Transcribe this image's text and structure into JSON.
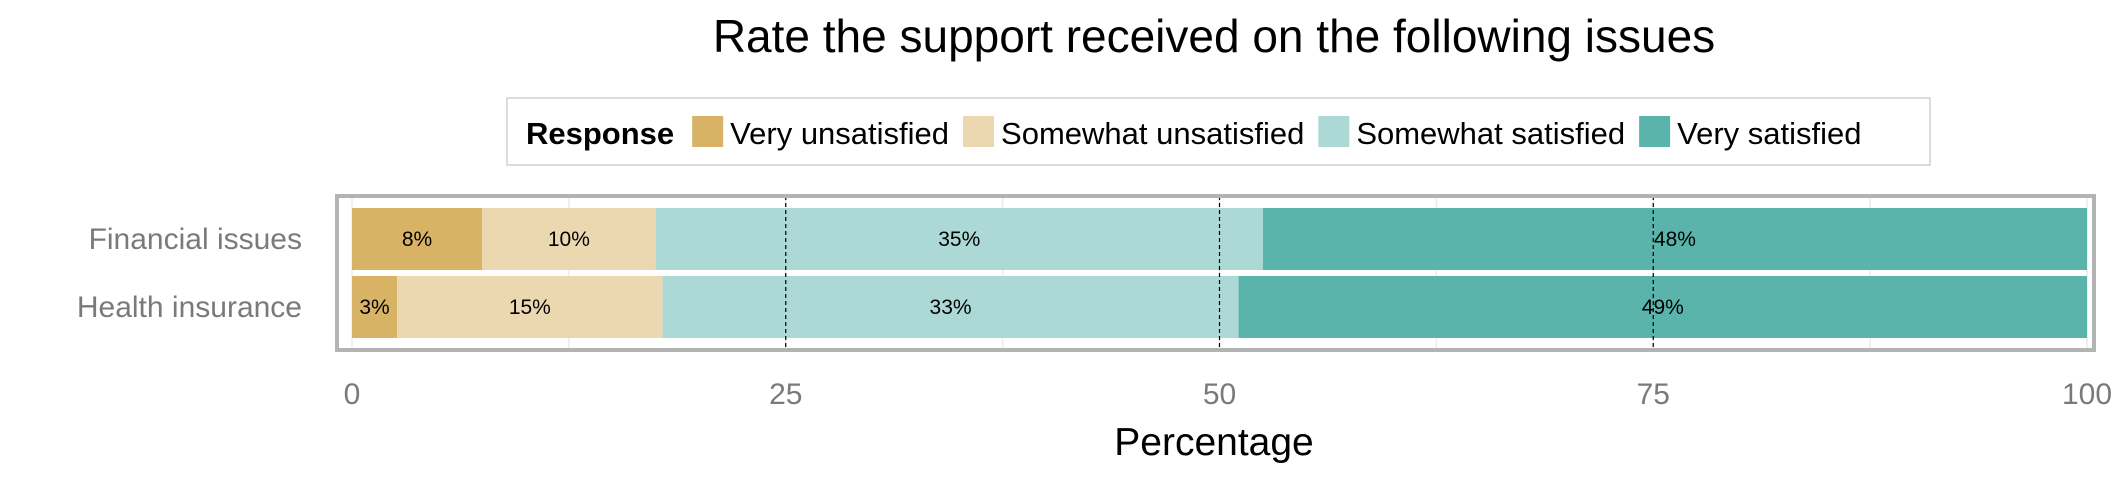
{
  "chart_data": {
    "type": "bar",
    "orientation": "horizontal",
    "stacked": true,
    "title": "Rate the support received on the following issues",
    "xlabel": "Percentage",
    "ylabel": "",
    "xlim": [
      0,
      100
    ],
    "x_ticks": [
      "0",
      "25",
      "50",
      "75",
      "100"
    ],
    "dashed_reference_lines": [
      25,
      50,
      75
    ],
    "grid": true,
    "legend": {
      "title": "Response",
      "position": "top"
    },
    "categories": [
      "Financial issues",
      "Health insurance"
    ],
    "series": [
      {
        "name": "Very unsatisfied",
        "color": "#d8b365",
        "values": [
          7.5,
          2.6
        ],
        "labels": [
          "8%",
          "3%"
        ]
      },
      {
        "name": "Somewhat unsatisfied",
        "color": "#ebd8b1",
        "values": [
          10.0,
          15.3
        ],
        "labels": [
          "10%",
          "15%"
        ]
      },
      {
        "name": "Somewhat satisfied",
        "color": "#acd9d5",
        "values": [
          35.0,
          33.2
        ],
        "labels": [
          "35%",
          "33%"
        ]
      },
      {
        "name": "Very satisfied",
        "color": "#5ab4ac",
        "values": [
          47.5,
          48.9
        ],
        "labels": [
          "48%",
          "49%"
        ]
      }
    ]
  }
}
